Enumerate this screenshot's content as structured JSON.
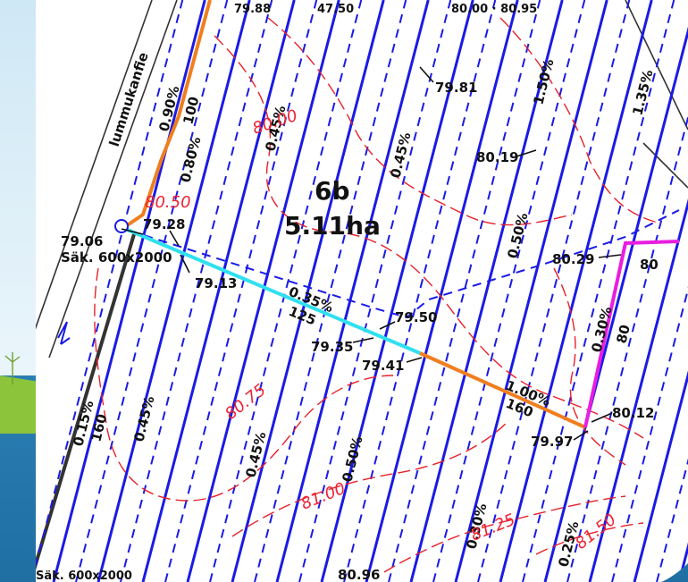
{
  "field": {
    "name": "6b",
    "area": "5.11ha"
  },
  "road_label": "lummukanfie",
  "top_labels": [
    "79.88",
    "47.50",
    "80.00 · 80.95"
  ],
  "elevations": [
    "79.81",
    "80.19",
    "80.29",
    "79.28",
    "79.06",
    "79.13",
    "79.50",
    "79.35",
    "79.41",
    "80.12",
    "79.97",
    "80.96"
  ],
  "slopes": [
    "0.90%",
    "0.80%",
    "0.45%",
    "0.45%",
    "1.50%",
    "1.35%",
    "0.50%",
    "0.35%",
    "0.30%",
    "1.00%",
    "0.15%",
    "0.45%",
    "0.45%",
    "0.50%",
    "0.30%",
    "0.25%"
  ],
  "pipe_sizes": [
    "100",
    "80",
    "80",
    "125",
    "160",
    "160"
  ],
  "drains": [
    "Säk. 600x2000",
    "Säk. 600x2000"
  ],
  "contours": [
    "80.00",
    "80.50",
    "80.75",
    "81.00",
    "81.25",
    "81.50"
  ],
  "colors": {
    "map_bg": "#ffffff",
    "drain_line": "#1a1ae6",
    "contour": "#e8202a",
    "main_orange": "#f07e1e",
    "main_cyan": "#2fe0f0",
    "main_magenta": "#e81ee0",
    "road": "#333333",
    "frame_blue": "#2a82b8",
    "grass": "#8cc43c"
  }
}
